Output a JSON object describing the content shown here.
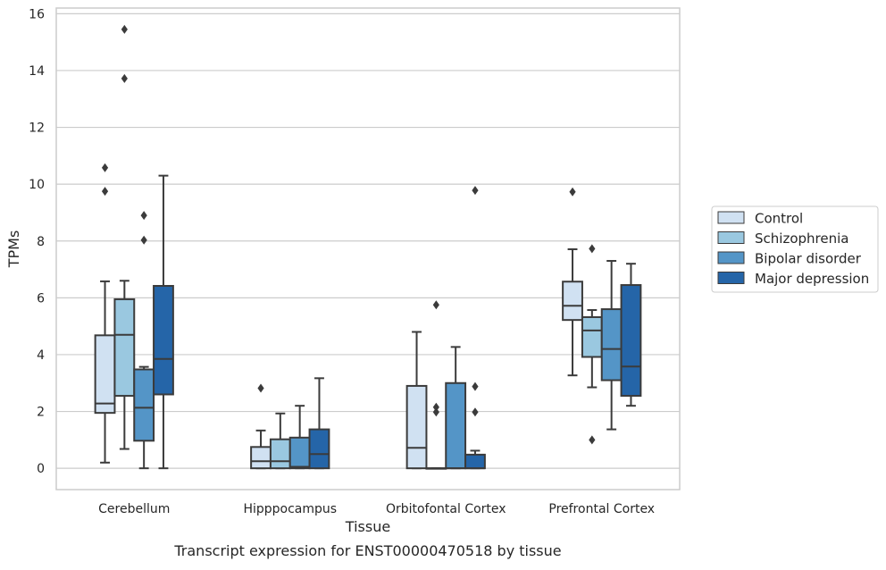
{
  "chart_data": {
    "type": "box",
    "title": "",
    "caption": "Transcript expression for ENST00000470518 by tissue",
    "xlabel": "Tissue",
    "ylabel": "TPMs",
    "ylim": [
      -0.75,
      16.2
    ],
    "yticks": [
      0,
      2,
      4,
      6,
      8,
      10,
      12,
      14,
      16
    ],
    "grid": "horizontal",
    "legend_position": "right",
    "categories": [
      "Cerebellum",
      "Hipppocampus",
      "Orbitofontal Cortex",
      "Prefrontal Cortex"
    ],
    "series": [
      {
        "name": "Control",
        "color": "#d0e1f2",
        "boxes": [
          {
            "whislo": 0.2,
            "q1": 1.95,
            "med": 2.28,
            "q3": 4.68,
            "whishi": 6.58,
            "fliers": [
              9.75,
              10.58
            ]
          },
          {
            "whislo": 0.0,
            "q1": 0.0,
            "med": 0.25,
            "q3": 0.75,
            "whishi": 1.33,
            "fliers": [
              2.82
            ]
          },
          {
            "whislo": 0.0,
            "q1": 0.0,
            "med": 0.72,
            "q3": 2.9,
            "whishi": 4.8,
            "fliers": []
          },
          {
            "whislo": 3.27,
            "q1": 5.22,
            "med": 5.72,
            "q3": 6.57,
            "whishi": 7.71,
            "fliers": [
              9.73
            ]
          }
        ]
      },
      {
        "name": "Schizophrenia",
        "color": "#9ac8e0",
        "boxes": [
          {
            "whislo": 0.68,
            "q1": 2.55,
            "med": 4.7,
            "q3": 5.95,
            "whishi": 6.6,
            "fliers": [
              13.72,
              15.45
            ]
          },
          {
            "whislo": 0.0,
            "q1": 0.0,
            "med": 0.25,
            "q3": 1.02,
            "whishi": 1.93,
            "fliers": []
          },
          {
            "whislo": 0.0,
            "q1": 0.0,
            "med": 0.0,
            "q3": 0.0,
            "whishi": 0.0,
            "fliers": [
              1.98,
              2.15,
              5.75
            ]
          },
          {
            "whislo": 2.85,
            "q1": 3.92,
            "med": 4.85,
            "q3": 5.32,
            "whishi": 5.57,
            "fliers": [
              1.0,
              7.73
            ]
          }
        ]
      },
      {
        "name": "Bipolar disorder",
        "color": "#5495c7",
        "boxes": [
          {
            "whislo": 0.0,
            "q1": 0.97,
            "med": 2.13,
            "q3": 3.48,
            "whishi": 3.57,
            "fliers": [
              8.03,
              8.9
            ]
          },
          {
            "whislo": 0.0,
            "q1": 0.0,
            "med": 0.05,
            "q3": 1.08,
            "whishi": 2.2,
            "fliers": []
          },
          {
            "whislo": 0.0,
            "q1": 0.0,
            "med": 0.0,
            "q3": 3.0,
            "whishi": 4.27,
            "fliers": []
          },
          {
            "whislo": 1.37,
            "q1": 3.1,
            "med": 4.2,
            "q3": 5.6,
            "whishi": 7.3,
            "fliers": []
          }
        ]
      },
      {
        "name": "Major depression",
        "color": "#2565a8",
        "boxes": [
          {
            "whislo": 0.0,
            "q1": 2.6,
            "med": 3.85,
            "q3": 6.42,
            "whishi": 10.3,
            "fliers": []
          },
          {
            "whislo": 0.0,
            "q1": 0.0,
            "med": 0.5,
            "q3": 1.37,
            "whishi": 3.17,
            "fliers": []
          },
          {
            "whislo": 0.0,
            "q1": 0.0,
            "med": 0.0,
            "q3": 0.48,
            "whishi": 0.62,
            "fliers": [
              1.98,
              2.88,
              9.78
            ]
          },
          {
            "whislo": 2.2,
            "q1": 2.55,
            "med": 3.58,
            "q3": 6.45,
            "whishi": 7.2,
            "fliers": []
          }
        ]
      }
    ]
  }
}
